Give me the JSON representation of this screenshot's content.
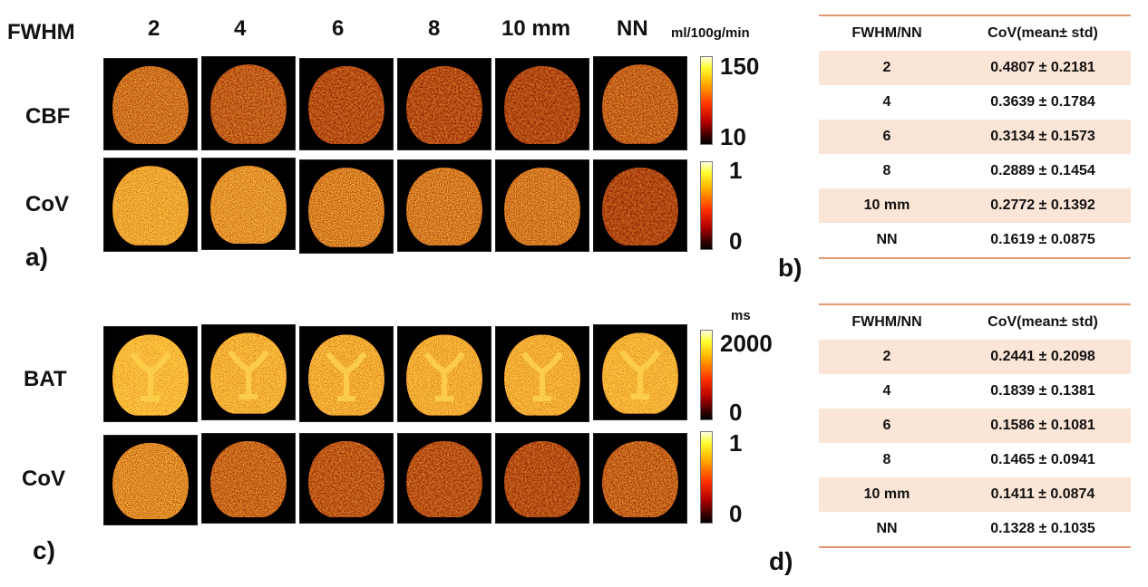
{
  "header": {
    "fwhm_label": "FWHM",
    "columns": [
      "2",
      "4",
      "6",
      "8",
      "10 mm",
      "NN"
    ],
    "unit_top": "ml/100g/min"
  },
  "panel_a": {
    "label": "a)",
    "rows": [
      "CBF",
      "CoV"
    ],
    "cbf_colorbar": {
      "max": "150",
      "min": "10"
    },
    "cov_colorbar": {
      "max": "1",
      "min": "0"
    }
  },
  "panel_c": {
    "label": "c)",
    "unit": "ms",
    "rows": [
      "BAT",
      "CoV"
    ],
    "bat_colorbar": {
      "max": "2000",
      "min": "0"
    },
    "cov_colorbar": {
      "max": "1",
      "min": "0"
    }
  },
  "colors": {
    "table_rule": "#e39a70",
    "table_shade": "#fbe5d6",
    "colormap": "hot"
  },
  "table_b": {
    "label": "b)",
    "headers": [
      "FWHM/NN",
      "CoV(mean± std)"
    ],
    "rows": [
      [
        "2",
        "0.4807 ± 0.2181"
      ],
      [
        "4",
        "0.3639 ± 0.1784"
      ],
      [
        "6",
        "0.3134 ± 0.1573"
      ],
      [
        "8",
        "0.2889 ±  0.1454"
      ],
      [
        "10 mm",
        "0.2772 ± 0.1392"
      ],
      [
        "NN",
        "0.1619 ± 0.0875"
      ]
    ]
  },
  "table_d": {
    "label": "d)",
    "headers": [
      "FWHM/NN",
      "CoV(mean± std)"
    ],
    "rows": [
      [
        "2",
        "0.2441 ± 0.2098"
      ],
      [
        "4",
        "0.1839 ±  0.1381"
      ],
      [
        "6",
        "0.1586 ±  0.1081"
      ],
      [
        "8",
        "0.1465 ± 0.0941"
      ],
      [
        "10 mm",
        "0.1411 ± 0.0874"
      ],
      [
        "NN",
        "0.1328 ± 0.1035"
      ]
    ]
  }
}
